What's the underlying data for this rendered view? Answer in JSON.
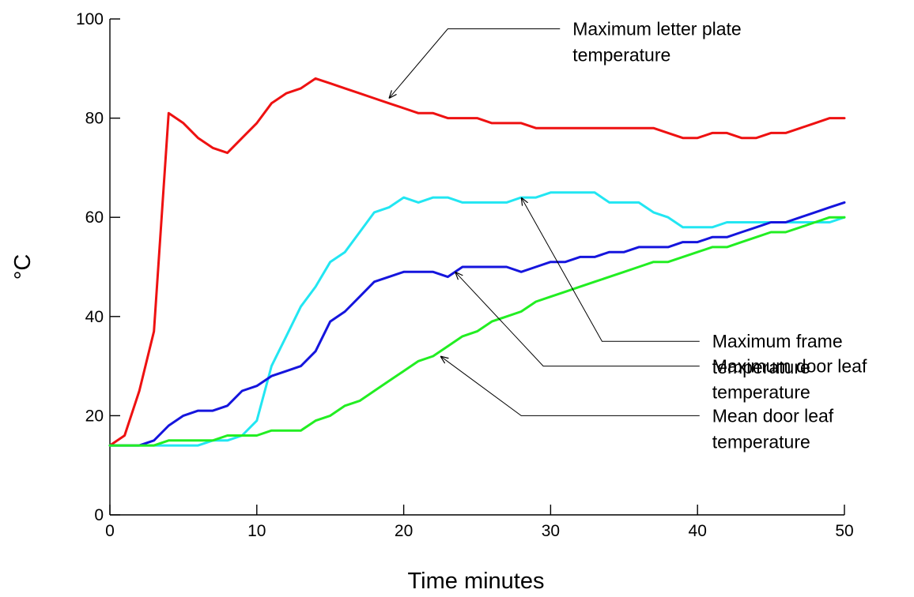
{
  "chart_data": {
    "type": "line",
    "title": "",
    "xlabel": "Time minutes",
    "ylabel": "°C",
    "xlim": [
      0,
      50
    ],
    "ylim": [
      0,
      100
    ],
    "xticks": [
      0,
      10,
      20,
      30,
      40,
      50
    ],
    "yticks": [
      0,
      20,
      40,
      60,
      80,
      100
    ],
    "grid": false,
    "legend": "none",
    "series": [
      {
        "name": "Maximum letter plate temperature",
        "color": "#ee1111",
        "x": [
          0,
          1,
          2,
          3,
          4,
          5,
          6,
          7,
          8,
          9,
          10,
          11,
          12,
          13,
          14,
          15,
          16,
          17,
          18,
          19,
          20,
          21,
          22,
          23,
          24,
          25,
          26,
          27,
          28,
          29,
          30,
          31,
          32,
          33,
          34,
          35,
          36,
          37,
          38,
          39,
          40,
          41,
          42,
          43,
          44,
          45,
          46,
          47,
          48,
          49,
          50
        ],
        "y": [
          14,
          16,
          25,
          37,
          81,
          79,
          76,
          74,
          73,
          76,
          79,
          83,
          85,
          86,
          88,
          87,
          86,
          85,
          84,
          83,
          82,
          81,
          81,
          80,
          80,
          80,
          79,
          79,
          79,
          78,
          78,
          78,
          78,
          78,
          78,
          78,
          78,
          78,
          77,
          76,
          76,
          77,
          77,
          76,
          76,
          77,
          77,
          78,
          79,
          80,
          80
        ]
      },
      {
        "name": "Maximum frame temperature",
        "color": "#22e6f2",
        "x": [
          0,
          1,
          2,
          3,
          4,
          5,
          6,
          7,
          8,
          9,
          10,
          11,
          12,
          13,
          14,
          15,
          16,
          17,
          18,
          19,
          20,
          21,
          22,
          23,
          24,
          25,
          26,
          27,
          28,
          29,
          30,
          31,
          32,
          33,
          34,
          35,
          36,
          37,
          38,
          39,
          40,
          41,
          42,
          43,
          44,
          45,
          46,
          47,
          48,
          49,
          50
        ],
        "y": [
          14,
          14,
          14,
          14,
          14,
          14,
          14,
          15,
          15,
          16,
          19,
          30,
          36,
          42,
          46,
          51,
          53,
          57,
          61,
          62,
          64,
          63,
          64,
          64,
          63,
          63,
          63,
          63,
          64,
          64,
          65,
          65,
          65,
          65,
          63,
          63,
          63,
          61,
          60,
          58,
          58,
          58,
          59,
          59,
          59,
          59,
          59,
          59,
          59,
          59,
          60
        ]
      },
      {
        "name": "Maximum door leaf temperature",
        "color": "#1515dd",
        "x": [
          0,
          1,
          2,
          3,
          4,
          5,
          6,
          7,
          8,
          9,
          10,
          11,
          12,
          13,
          14,
          15,
          16,
          17,
          18,
          19,
          20,
          21,
          22,
          23,
          24,
          25,
          26,
          27,
          28,
          29,
          30,
          31,
          32,
          33,
          34,
          35,
          36,
          37,
          38,
          39,
          40,
          41,
          42,
          43,
          44,
          45,
          46,
          47,
          48,
          49,
          50
        ],
        "y": [
          14,
          14,
          14,
          15,
          18,
          20,
          21,
          21,
          22,
          25,
          26,
          28,
          29,
          30,
          33,
          39,
          41,
          44,
          47,
          48,
          49,
          49,
          49,
          48,
          50,
          50,
          50,
          50,
          49,
          50,
          51,
          51,
          52,
          52,
          53,
          53,
          54,
          54,
          54,
          55,
          55,
          56,
          56,
          57,
          58,
          59,
          59,
          60,
          61,
          62,
          63
        ]
      },
      {
        "name": "Mean door leaf temperature",
        "color": "#22ee22",
        "x": [
          0,
          1,
          2,
          3,
          4,
          5,
          6,
          7,
          8,
          9,
          10,
          11,
          12,
          13,
          14,
          15,
          16,
          17,
          18,
          19,
          20,
          21,
          22,
          23,
          24,
          25,
          26,
          27,
          28,
          29,
          30,
          31,
          32,
          33,
          34,
          35,
          36,
          37,
          38,
          39,
          40,
          41,
          42,
          43,
          44,
          45,
          46,
          47,
          48,
          49,
          50
        ],
        "y": [
          14,
          14,
          14,
          14,
          15,
          15,
          15,
          15,
          16,
          16,
          16,
          17,
          17,
          17,
          19,
          20,
          22,
          23,
          25,
          27,
          29,
          31,
          32,
          34,
          36,
          37,
          39,
          40,
          41,
          43,
          44,
          45,
          46,
          47,
          48,
          49,
          50,
          51,
          51,
          52,
          53,
          54,
          54,
          55,
          56,
          57,
          57,
          58,
          59,
          60,
          60
        ]
      }
    ],
    "annotations": [
      {
        "lines": [
          "Maximum letter plate",
          "temperature"
        ],
        "target": [
          19,
          84
        ],
        "elbow": [
          23,
          98
        ],
        "text_pos": [
          31.5,
          98
        ]
      },
      {
        "lines": [
          "Maximum frame",
          "temperature"
        ],
        "target": [
          28,
          64
        ],
        "elbow": [
          33.5,
          35
        ],
        "text_pos": [
          41,
          35
        ]
      },
      {
        "lines": [
          "Maximum door leaf",
          "temperature"
        ],
        "target": [
          23.5,
          49
        ],
        "elbow": [
          29.5,
          30
        ],
        "text_pos": [
          41,
          30
        ]
      },
      {
        "lines": [
          "Mean door leaf",
          "temperature"
        ],
        "target": [
          22.5,
          32
        ],
        "elbow": [
          28,
          20
        ],
        "text_pos": [
          41,
          20
        ]
      }
    ]
  }
}
